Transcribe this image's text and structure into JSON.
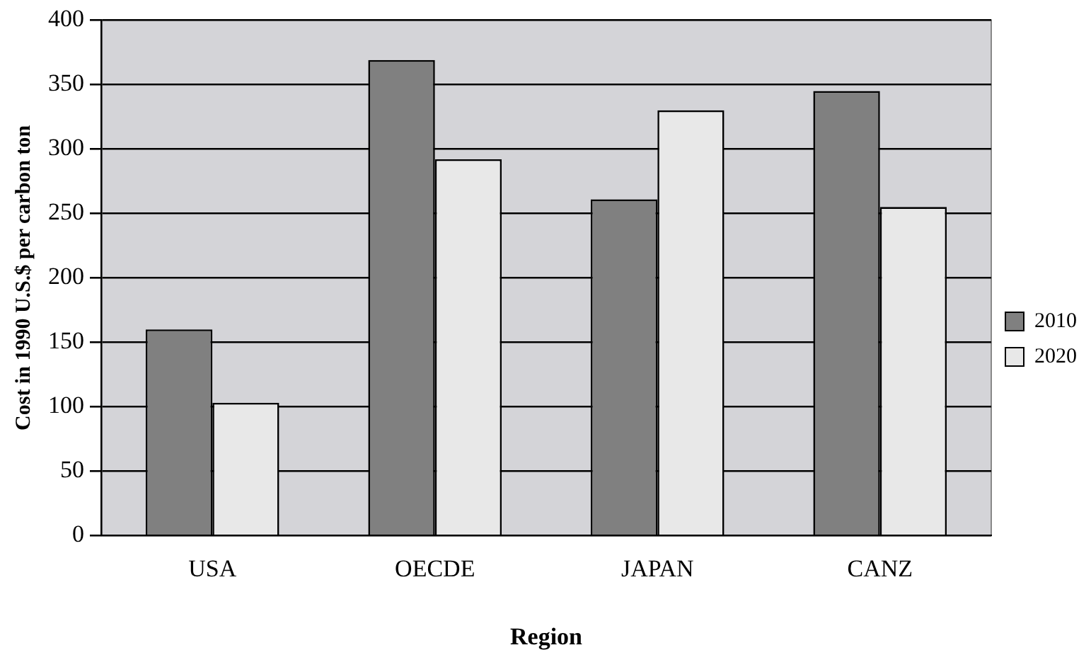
{
  "chart_data": {
    "type": "bar",
    "xlabel": "Region",
    "ylabel": "Cost in 1990 U.S.$ per carbon ton",
    "categories": [
      "USA",
      "OECDE",
      "JAPAN",
      "CANZ"
    ],
    "series": [
      {
        "name": "2010",
        "color": "#808080",
        "values": [
          160,
          369,
          261,
          345
        ]
      },
      {
        "name": "2020",
        "color": "#e8e8e8",
        "values": [
          103,
          292,
          330,
          255
        ]
      }
    ],
    "ylim": [
      0,
      400
    ],
    "yticks": [
      0,
      50,
      100,
      150,
      200,
      250,
      300,
      350,
      400
    ],
    "grid": "y",
    "legend": "right"
  }
}
